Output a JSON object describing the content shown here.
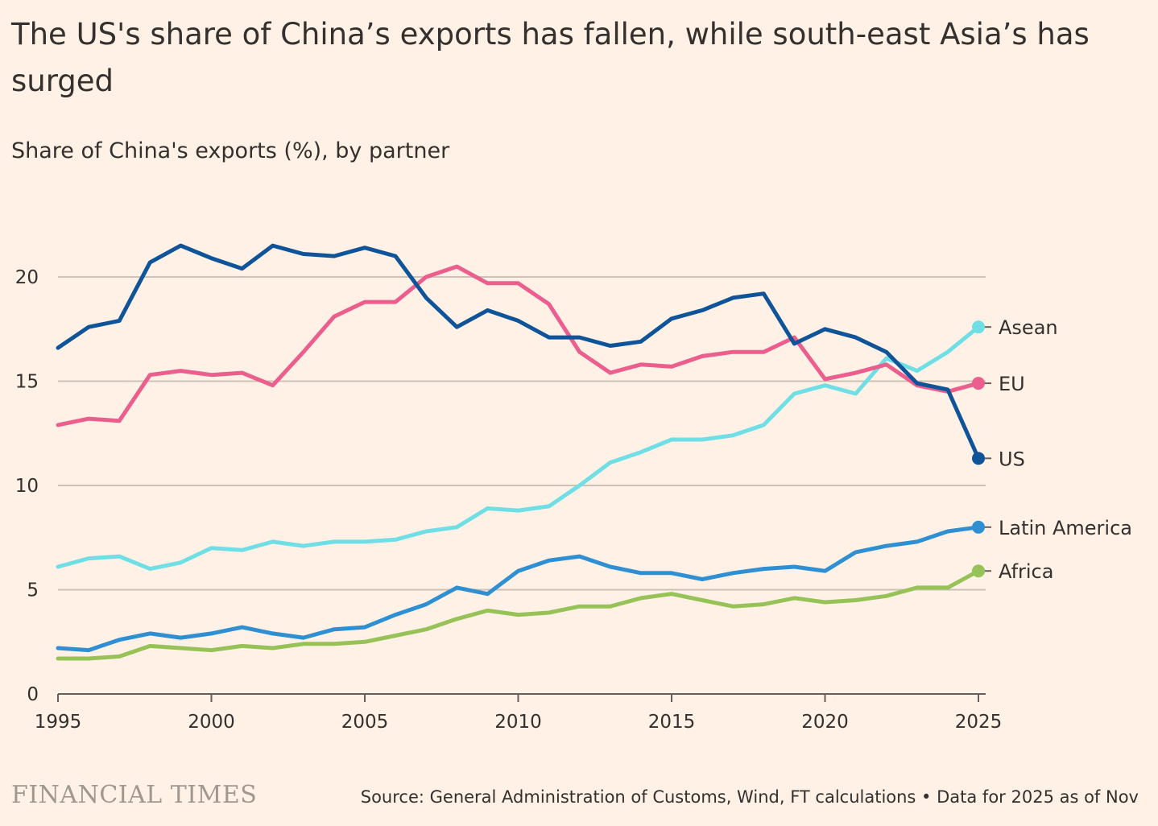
{
  "title": "The US's share of China’s exports has fallen, while south-east Asia’s has surged",
  "subtitle": "Share of China's exports (%), by partner",
  "source": "Source: General Administration of Customs, Wind, FT calculations • Data for 2025 as of Nov",
  "logo": "FINANCIAL TIMES",
  "chart_data": {
    "type": "line",
    "title": "The US's share of China’s exports has fallen, while south-east Asia’s has surged",
    "ylabel": "Share of China's exports (%)",
    "xlabel": "",
    "xlim": [
      1995,
      2025
    ],
    "ylim": [
      0,
      20
    ],
    "grid": true,
    "legend": "direct-labels-right",
    "x_ticks": [
      "1995",
      "2000",
      "2005",
      "2010",
      "2015",
      "2020",
      "2025"
    ],
    "y_ticks": [
      "0",
      "5",
      "10",
      "15",
      "20"
    ],
    "x": [
      1995,
      1996,
      1997,
      1998,
      1999,
      2000,
      2001,
      2002,
      2003,
      2004,
      2005,
      2006,
      2007,
      2008,
      2009,
      2010,
      2011,
      2012,
      2013,
      2014,
      2015,
      2016,
      2017,
      2018,
      2019,
      2020,
      2021,
      2022,
      2023,
      2024,
      2025
    ],
    "series": [
      {
        "name": "US",
        "color": "#0f5499",
        "values": [
          16.6,
          17.6,
          17.9,
          20.7,
          21.5,
          20.9,
          20.4,
          21.5,
          21.1,
          21.0,
          21.4,
          21.0,
          19.0,
          17.6,
          18.4,
          17.9,
          17.1,
          17.1,
          16.7,
          16.9,
          18.0,
          18.4,
          19.0,
          19.2,
          16.8,
          17.5,
          17.1,
          16.4,
          14.9,
          14.6,
          11.3
        ]
      },
      {
        "name": "EU",
        "color": "#eb5e8d",
        "values": [
          12.9,
          13.2,
          13.1,
          15.3,
          15.5,
          15.3,
          15.4,
          14.8,
          16.4,
          18.1,
          18.8,
          18.8,
          20.0,
          20.5,
          19.7,
          19.7,
          18.7,
          16.4,
          15.4,
          15.8,
          15.7,
          16.2,
          16.4,
          16.4,
          17.1,
          15.1,
          15.4,
          15.8,
          14.8,
          14.5,
          14.9
        ]
      },
      {
        "name": "Asean",
        "color": "#70dfe5",
        "values": [
          6.1,
          6.5,
          6.6,
          6.0,
          6.3,
          7.0,
          6.9,
          7.3,
          7.1,
          7.3,
          7.3,
          7.4,
          7.8,
          8.0,
          8.9,
          8.8,
          9.0,
          10.0,
          11.1,
          11.6,
          12.2,
          12.2,
          12.4,
          12.9,
          14.4,
          14.8,
          14.4,
          16.1,
          15.5,
          16.4,
          17.6
        ]
      },
      {
        "name": "Latin America",
        "color": "#2e8fd3",
        "values": [
          2.2,
          2.1,
          2.6,
          2.9,
          2.7,
          2.9,
          3.2,
          2.9,
          2.7,
          3.1,
          3.2,
          3.8,
          4.3,
          5.1,
          4.8,
          5.9,
          6.4,
          6.6,
          6.1,
          5.8,
          5.8,
          5.5,
          5.8,
          6.0,
          6.1,
          5.9,
          6.8,
          7.1,
          7.3,
          7.8,
          8.0
        ]
      },
      {
        "name": "Africa",
        "color": "#96c257",
        "values": [
          1.7,
          1.7,
          1.8,
          2.3,
          2.2,
          2.1,
          2.3,
          2.2,
          2.4,
          2.4,
          2.5,
          2.8,
          3.1,
          3.6,
          4.0,
          3.8,
          3.9,
          4.2,
          4.2,
          4.6,
          4.8,
          4.5,
          4.2,
          4.3,
          4.6,
          4.4,
          4.5,
          4.7,
          5.1,
          5.1,
          5.9
        ]
      }
    ]
  }
}
